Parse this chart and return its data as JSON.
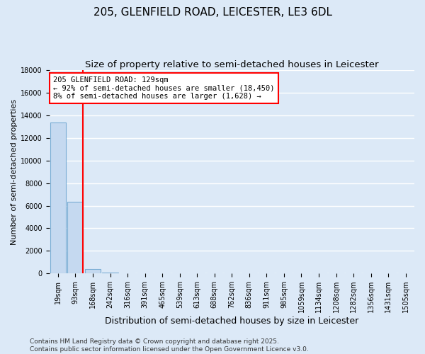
{
  "title_line1": "205, GLENFIELD ROAD, LEICESTER, LE3 6DL",
  "title_line2": "Size of property relative to semi-detached houses in Leicester",
  "xlabel": "Distribution of semi-detached houses by size in Leicester",
  "ylabel": "Number of semi-detached properties",
  "bar_labels": [
    "19sqm",
    "93sqm",
    "168sqm",
    "242sqm",
    "316sqm",
    "391sqm",
    "465sqm",
    "539sqm",
    "613sqm",
    "688sqm",
    "762sqm",
    "836sqm",
    "911sqm",
    "985sqm",
    "1059sqm",
    "1134sqm",
    "1208sqm",
    "1282sqm",
    "1356sqm",
    "1431sqm",
    "1505sqm"
  ],
  "bar_values": [
    13400,
    6350,
    420,
    55,
    10,
    3,
    1,
    1,
    0,
    0,
    0,
    0,
    0,
    0,
    0,
    0,
    0,
    0,
    0,
    0,
    0
  ],
  "bar_color": "#c5d9f0",
  "bar_edge_color": "#7aadd4",
  "ylim": [
    0,
    18000
  ],
  "yticks": [
    0,
    2000,
    4000,
    6000,
    8000,
    10000,
    12000,
    14000,
    16000,
    18000
  ],
  "red_line_x": 1.42,
  "annotation_text_line1": "205 GLENFIELD ROAD: 129sqm",
  "annotation_text_line2": "← 92% of semi-detached houses are smaller (18,450)",
  "annotation_text_line3": "8% of semi-detached houses are larger (1,628) →",
  "annotation_box_color": "white",
  "annotation_box_edge_color": "red",
  "red_line_color": "red",
  "background_color": "#dce9f7",
  "plot_background_color": "#dce9f7",
  "grid_color": "white",
  "footer_line1": "Contains HM Land Registry data © Crown copyright and database right 2025.",
  "footer_line2": "Contains public sector information licensed under the Open Government Licence v3.0.",
  "title_fontsize": 11,
  "subtitle_fontsize": 9.5,
  "tick_fontsize": 7,
  "ylabel_fontsize": 8,
  "xlabel_fontsize": 9
}
